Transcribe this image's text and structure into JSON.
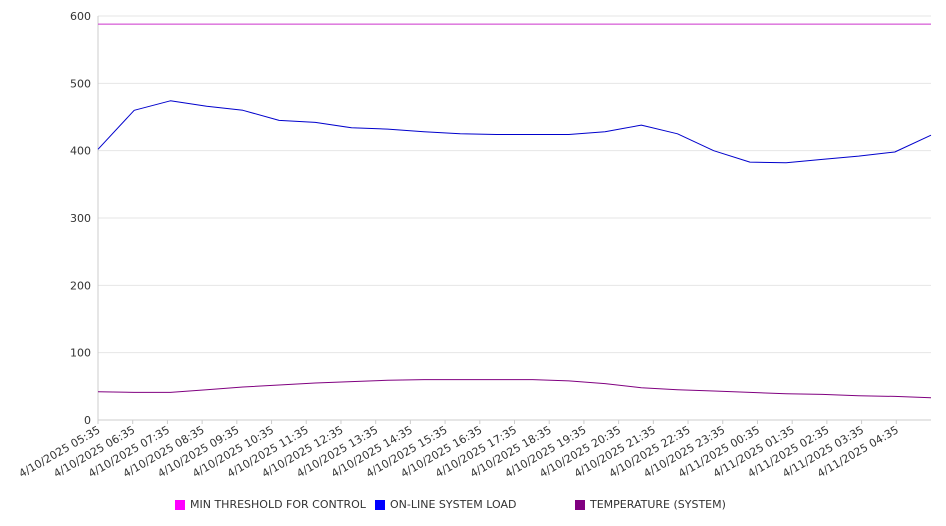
{
  "chart_data": {
    "type": "line",
    "title": "",
    "xlabel": "",
    "ylabel": "",
    "ylim": [
      0,
      600
    ],
    "y_ticks": [
      0,
      100,
      200,
      300,
      400,
      500,
      600
    ],
    "grid": true,
    "legend_position": "bottom",
    "categories": [
      "4/10/2025 05:35",
      "4/10/2025 06:35",
      "4/10/2025 07:35",
      "4/10/2025 08:35",
      "4/10/2025 09:35",
      "4/10/2025 10:35",
      "4/10/2025 11:35",
      "4/10/2025 12:35",
      "4/10/2025 13:35",
      "4/10/2025 14:35",
      "4/10/2025 15:35",
      "4/10/2025 16:35",
      "4/10/2025 17:35",
      "4/10/2025 18:35",
      "4/10/2025 19:35",
      "4/10/2025 20:35",
      "4/10/2025 21:35",
      "4/10/2025 22:35",
      "4/10/2025 23:35",
      "4/11/2025 00:35",
      "4/11/2025 01:35",
      "4/11/2025 02:35",
      "4/11/2025 03:35",
      "4/11/2025 04:35"
    ],
    "series": [
      {
        "name": "MIN THRESHOLD FOR CONTROL",
        "color": "#cc33cc",
        "values": [
          588,
          588,
          588,
          588,
          588,
          588,
          588,
          588,
          588,
          588,
          588,
          588,
          588,
          588,
          588,
          588,
          588,
          588,
          588,
          588,
          588,
          588,
          588,
          588
        ]
      },
      {
        "name": "ON-LINE SYSTEM LOAD",
        "color": "#0000cc",
        "values": [
          402,
          460,
          474,
          466,
          460,
          445,
          442,
          434,
          432,
          428,
          425,
          424,
          424,
          424,
          428,
          438,
          425,
          400,
          383,
          382,
          387,
          392,
          398,
          423
        ]
      },
      {
        "name": "TEMPERATURE (SYSTEM)",
        "color": "#800080",
        "values": [
          42,
          41,
          41,
          45,
          49,
          52,
          55,
          57,
          59,
          60,
          60,
          60,
          60,
          58,
          54,
          48,
          45,
          43,
          41,
          39,
          38,
          36,
          35,
          33
        ]
      }
    ]
  }
}
